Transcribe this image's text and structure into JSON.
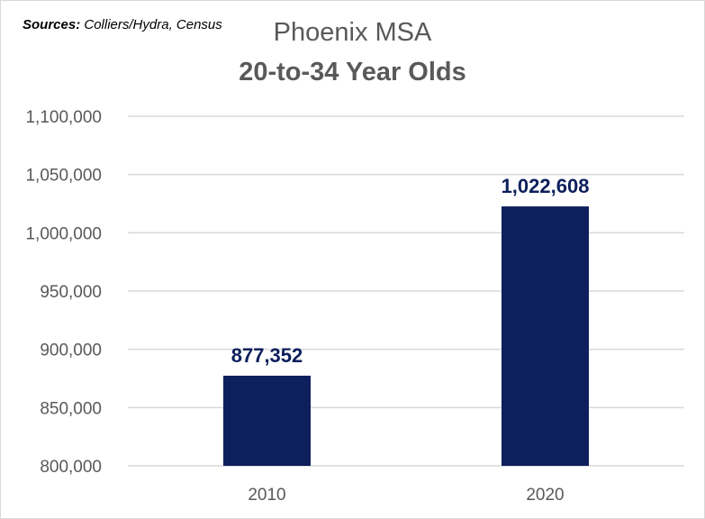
{
  "source": {
    "label": "Sources:",
    "text": "Colliers/Hydra, Census"
  },
  "chart_data": {
    "type": "bar",
    "title": "Phoenix MSA",
    "subtitle": "20-to-34 Year Olds",
    "categories": [
      "2010",
      "2020"
    ],
    "values": [
      877352,
      1022608
    ],
    "data_labels": [
      "877,352",
      "1,022,608"
    ],
    "ylim": [
      800000,
      1100000
    ],
    "yticks": [
      800000,
      850000,
      900000,
      950000,
      1000000,
      1050000,
      1100000
    ],
    "ytick_labels": [
      "800,000",
      "850,000",
      "900,000",
      "950,000",
      "1,000,000",
      "1,050,000",
      "1,100,000"
    ],
    "xlabel": "",
    "ylabel": "",
    "grid": true,
    "legend": "none",
    "bar_color": "#0d1f5c"
  }
}
